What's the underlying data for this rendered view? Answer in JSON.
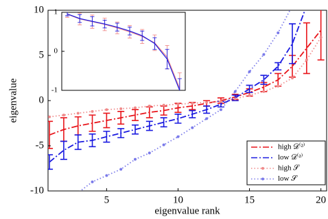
{
  "chart_data": [
    {
      "type": "line",
      "xlabel": "eigenvalue rank",
      "ylabel": "eigenvalue",
      "x": [
        1,
        2,
        3,
        4,
        5,
        6,
        7,
        8,
        9,
        10,
        11,
        12,
        13,
        14,
        15,
        16,
        17,
        18,
        19,
        20
      ],
      "xlim": [
        0.9,
        20.4
      ],
      "ylim": [
        -10,
        10
      ],
      "xticks": [
        5,
        10,
        15,
        20
      ],
      "yticks": [
        -10,
        -5,
        0,
        5,
        10
      ],
      "legend": "lower right",
      "series": [
        {
          "name": "high 𝒟⁽²⁾",
          "color": "#e8141a",
          "style": "dashdot",
          "values": [
            -3.8,
            -3.2,
            -2.8,
            -2.5,
            -2.2,
            -1.9,
            -1.6,
            -1.3,
            -1.1,
            -0.8,
            -0.6,
            -0.3,
            0,
            0.4,
            0.9,
            1.5,
            2.3,
            3.8,
            5.8,
            7.8
          ],
          "errors": [
            1.5,
            1.3,
            1.0,
            0.9,
            0.8,
            0.7,
            0.6,
            0.6,
            0.5,
            0.5,
            0.4,
            0.3,
            0.3,
            0.3,
            0.4,
            0.5,
            0.7,
            1.2,
            2.8,
            3.3
          ]
        },
        {
          "name": "low 𝒟⁽²⁾",
          "color": "#1a1ae0",
          "style": "dashdot",
          "values": [
            -6.8,
            -5.5,
            -4.6,
            -4.4,
            -4.0,
            -3.6,
            -3.2,
            -2.8,
            -2.4,
            -2.0,
            -1.5,
            -1.0,
            -0.4,
            0.3,
            1.3,
            2.3,
            3.8,
            6.3,
            10.5,
            null
          ],
          "errors": [
            0.8,
            1.0,
            0.8,
            0.7,
            0.6,
            0.5,
            0.5,
            0.5,
            0.5,
            0.5,
            0.4,
            0.4,
            0.3,
            0.3,
            0.4,
            0.5,
            0.4,
            2.2,
            null,
            null
          ]
        },
        {
          "name": "high 𝒮",
          "color": "#f08a8a",
          "style": "dotted",
          "values": [
            -1.8,
            -1.6,
            -1.4,
            -1.2,
            -1.0,
            -0.9,
            -0.8,
            -0.6,
            -0.5,
            -0.4,
            -0.3,
            -0.2,
            -0.1,
            0.2,
            0.6,
            1.0,
            1.6,
            2.5,
            4.5,
            7.0
          ]
        },
        {
          "name": "low 𝒮",
          "color": "#7a7aea",
          "style": "dotted",
          "values": [
            -14,
            -12,
            -10.2,
            -9,
            -8.3,
            -7.6,
            -6.5,
            -5.8,
            -4.9,
            -4.0,
            -3.0,
            -2.0,
            -1.0,
            1.0,
            3.2,
            5.1,
            7.5,
            10.5,
            null,
            null
          ]
        }
      ]
    },
    {
      "type": "line",
      "x": [
        1,
        2,
        3,
        4,
        5,
        6,
        7,
        8,
        9,
        10
      ],
      "xlim": [
        0.56,
        10.45
      ],
      "ylim": [
        -1,
        1
      ],
      "yticks": [
        -1,
        0,
        1
      ],
      "series": [
        {
          "color": "#f08a8a",
          "values": [
            0.95,
            0.83,
            0.76,
            0.69,
            0.6,
            0.5,
            0.38,
            0.22,
            -0.15,
            -0.95
          ],
          "errors": [
            0.08,
            0.15,
            0.17,
            0.16,
            0.15,
            0.16,
            0.18,
            0.2,
            0.3,
            0.4
          ]
        },
        {
          "color": "#1a1ae0",
          "values": [
            0.96,
            0.84,
            0.77,
            0.7,
            0.62,
            0.52,
            0.4,
            0.2,
            -0.2,
            -1.0
          ],
          "errors": [
            0.05,
            0.1,
            0.12,
            0.1,
            0.1,
            0.1,
            0.12,
            0.15,
            0.25,
            0.3
          ]
        }
      ]
    }
  ]
}
